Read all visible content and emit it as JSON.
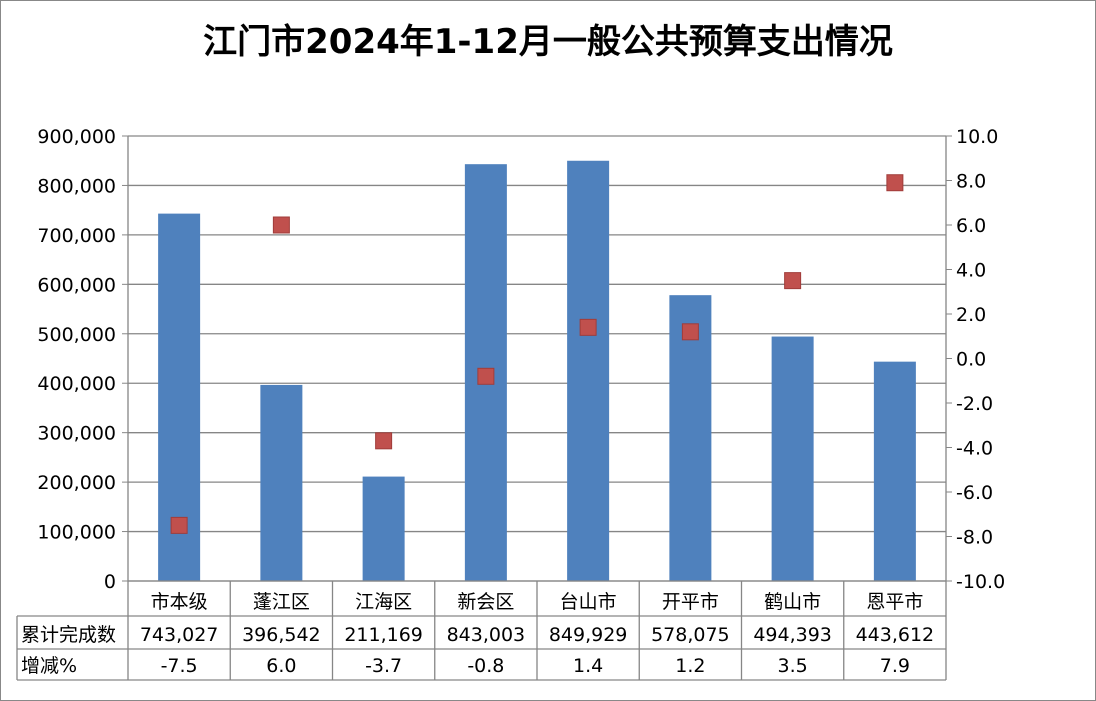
{
  "chart_data": {
    "type": "bar",
    "title": "江门市2024年1-12月一般公共预算支出情况",
    "categories": [
      "市本级",
      "蓬江区",
      "江海区",
      "新会区",
      "台山市",
      "开平市",
      "鹤山市",
      "恩平市"
    ],
    "series": [
      {
        "name": "累计完成数",
        "type": "bar",
        "axis": "left",
        "color": "#4F81BD",
        "values": [
          743027,
          396542,
          211169,
          843003,
          849929,
          578075,
          494393,
          443612
        ],
        "labels": [
          "743,027",
          "396,542",
          "211,169",
          "843,003",
          "849,929",
          "578,075",
          "494,393",
          "443,612"
        ]
      },
      {
        "name": "增减%",
        "type": "scatter",
        "axis": "right",
        "color": "#C0504D",
        "values": [
          -7.5,
          6.0,
          -3.7,
          -0.8,
          1.4,
          1.2,
          3.5,
          7.9
        ],
        "labels": [
          "-7.5",
          "6.0",
          "-3.7",
          "-0.8",
          "1.4",
          "1.2",
          "3.5",
          "7.9"
        ]
      }
    ],
    "ylim": [
      0,
      900000
    ],
    "y2lim": [
      -10,
      10
    ],
    "yticks": [
      "0",
      "100,000",
      "200,000",
      "300,000",
      "400,000",
      "500,000",
      "600,000",
      "700,000",
      "800,000",
      "900,000"
    ],
    "y2ticks": [
      "-10.0",
      "-8.0",
      "-6.0",
      "-4.0",
      "-2.0",
      "0.0",
      "2.0",
      "4.0",
      "6.0",
      "8.0",
      "10.0"
    ],
    "grid": true,
    "legend": "data-table"
  }
}
